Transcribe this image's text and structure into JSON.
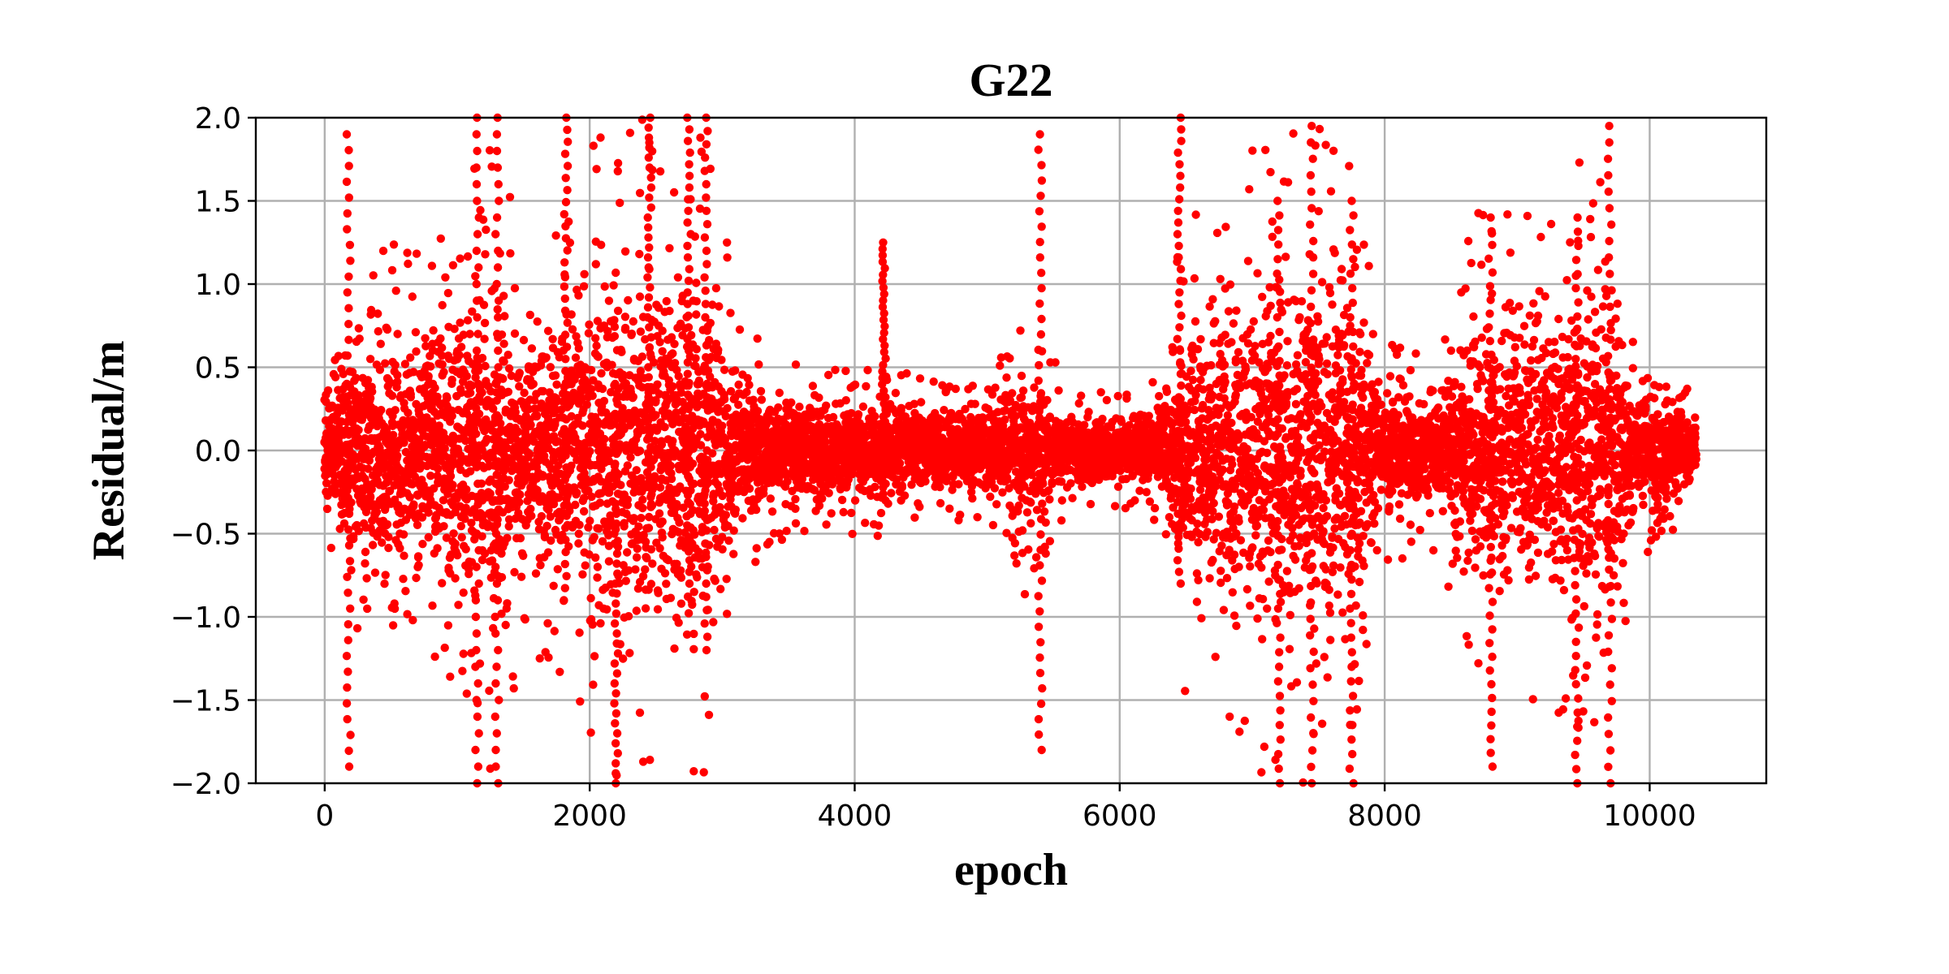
{
  "chart_data": {
    "type": "scatter",
    "title": "G22",
    "xlabel": "epoch",
    "ylabel": "Residual/m",
    "xlim": [
      -520,
      10880
    ],
    "ylim": [
      -2.0,
      2.0
    ],
    "xticks": [
      0,
      2000,
      4000,
      6000,
      8000,
      10000
    ],
    "xtick_labels": [
      "0",
      "2000",
      "4000",
      "6000",
      "8000",
      "10000"
    ],
    "yticks": [
      -2.0,
      -1.5,
      -1.0,
      -0.5,
      0.0,
      0.5,
      1.0,
      1.5,
      2.0
    ],
    "ytick_labels": [
      "−2.0",
      "−1.5",
      "−1.0",
      "−0.5",
      "0.0",
      "0.5",
      "1.0",
      "1.5",
      "2.0"
    ],
    "grid": true,
    "color": "#ff0000",
    "x_range": [
      0,
      10350
    ],
    "envelope": {
      "x": [
        0,
        300,
        700,
        1000,
        1250,
        1500,
        1800,
        2100,
        2400,
        2700,
        2900,
        3100,
        3400,
        3800,
        4200,
        4600,
        5000,
        5300,
        5600,
        6000,
        6300,
        6500,
        6800,
        7100,
        7400,
        7700,
        8000,
        8400,
        8700,
        9000,
        9300,
        9600,
        9900,
        10350
      ],
      "spread": [
        0.45,
        1.3,
        1.2,
        1.5,
        2.0,
        1.2,
        1.4,
        2.0,
        2.0,
        2.0,
        2.0,
        0.9,
        0.55,
        0.5,
        0.55,
        0.45,
        0.4,
        0.9,
        0.4,
        0.35,
        0.45,
        1.5,
        1.6,
        2.0,
        2.0,
        2.0,
        0.7,
        0.6,
        1.5,
        1.5,
        1.6,
        1.9,
        0.7,
        0.35
      ]
    },
    "spikes": [
      {
        "x": 180,
        "y0": -1.9,
        "y1": 1.9
      },
      {
        "x": 1150,
        "y0": -2.0,
        "y1": 2.0
      },
      {
        "x": 1300,
        "y0": -2.0,
        "y1": 2.0
      },
      {
        "x": 1820,
        "y0": -0.9,
        "y1": 2.0
      },
      {
        "x": 2200,
        "y0": -2.0,
        "y1": 0.4
      },
      {
        "x": 2450,
        "y0": -0.4,
        "y1": 2.0
      },
      {
        "x": 2750,
        "y0": -0.8,
        "y1": 2.0
      },
      {
        "x": 2880,
        "y0": -1.2,
        "y1": 2.0
      },
      {
        "x": 4220,
        "y0": -0.3,
        "y1": 1.25
      },
      {
        "x": 5400,
        "y0": -1.8,
        "y1": 1.9
      },
      {
        "x": 6450,
        "y0": -0.8,
        "y1": 2.0
      },
      {
        "x": 7200,
        "y0": -2.0,
        "y1": 1.5
      },
      {
        "x": 7450,
        "y0": -2.0,
        "y1": 1.95
      },
      {
        "x": 7750,
        "y0": -2.0,
        "y1": 1.5
      },
      {
        "x": 8800,
        "y0": -1.9,
        "y1": 1.4
      },
      {
        "x": 9450,
        "y0": -2.0,
        "y1": 1.4
      },
      {
        "x": 9700,
        "y0": -2.0,
        "y1": 1.95
      }
    ]
  }
}
